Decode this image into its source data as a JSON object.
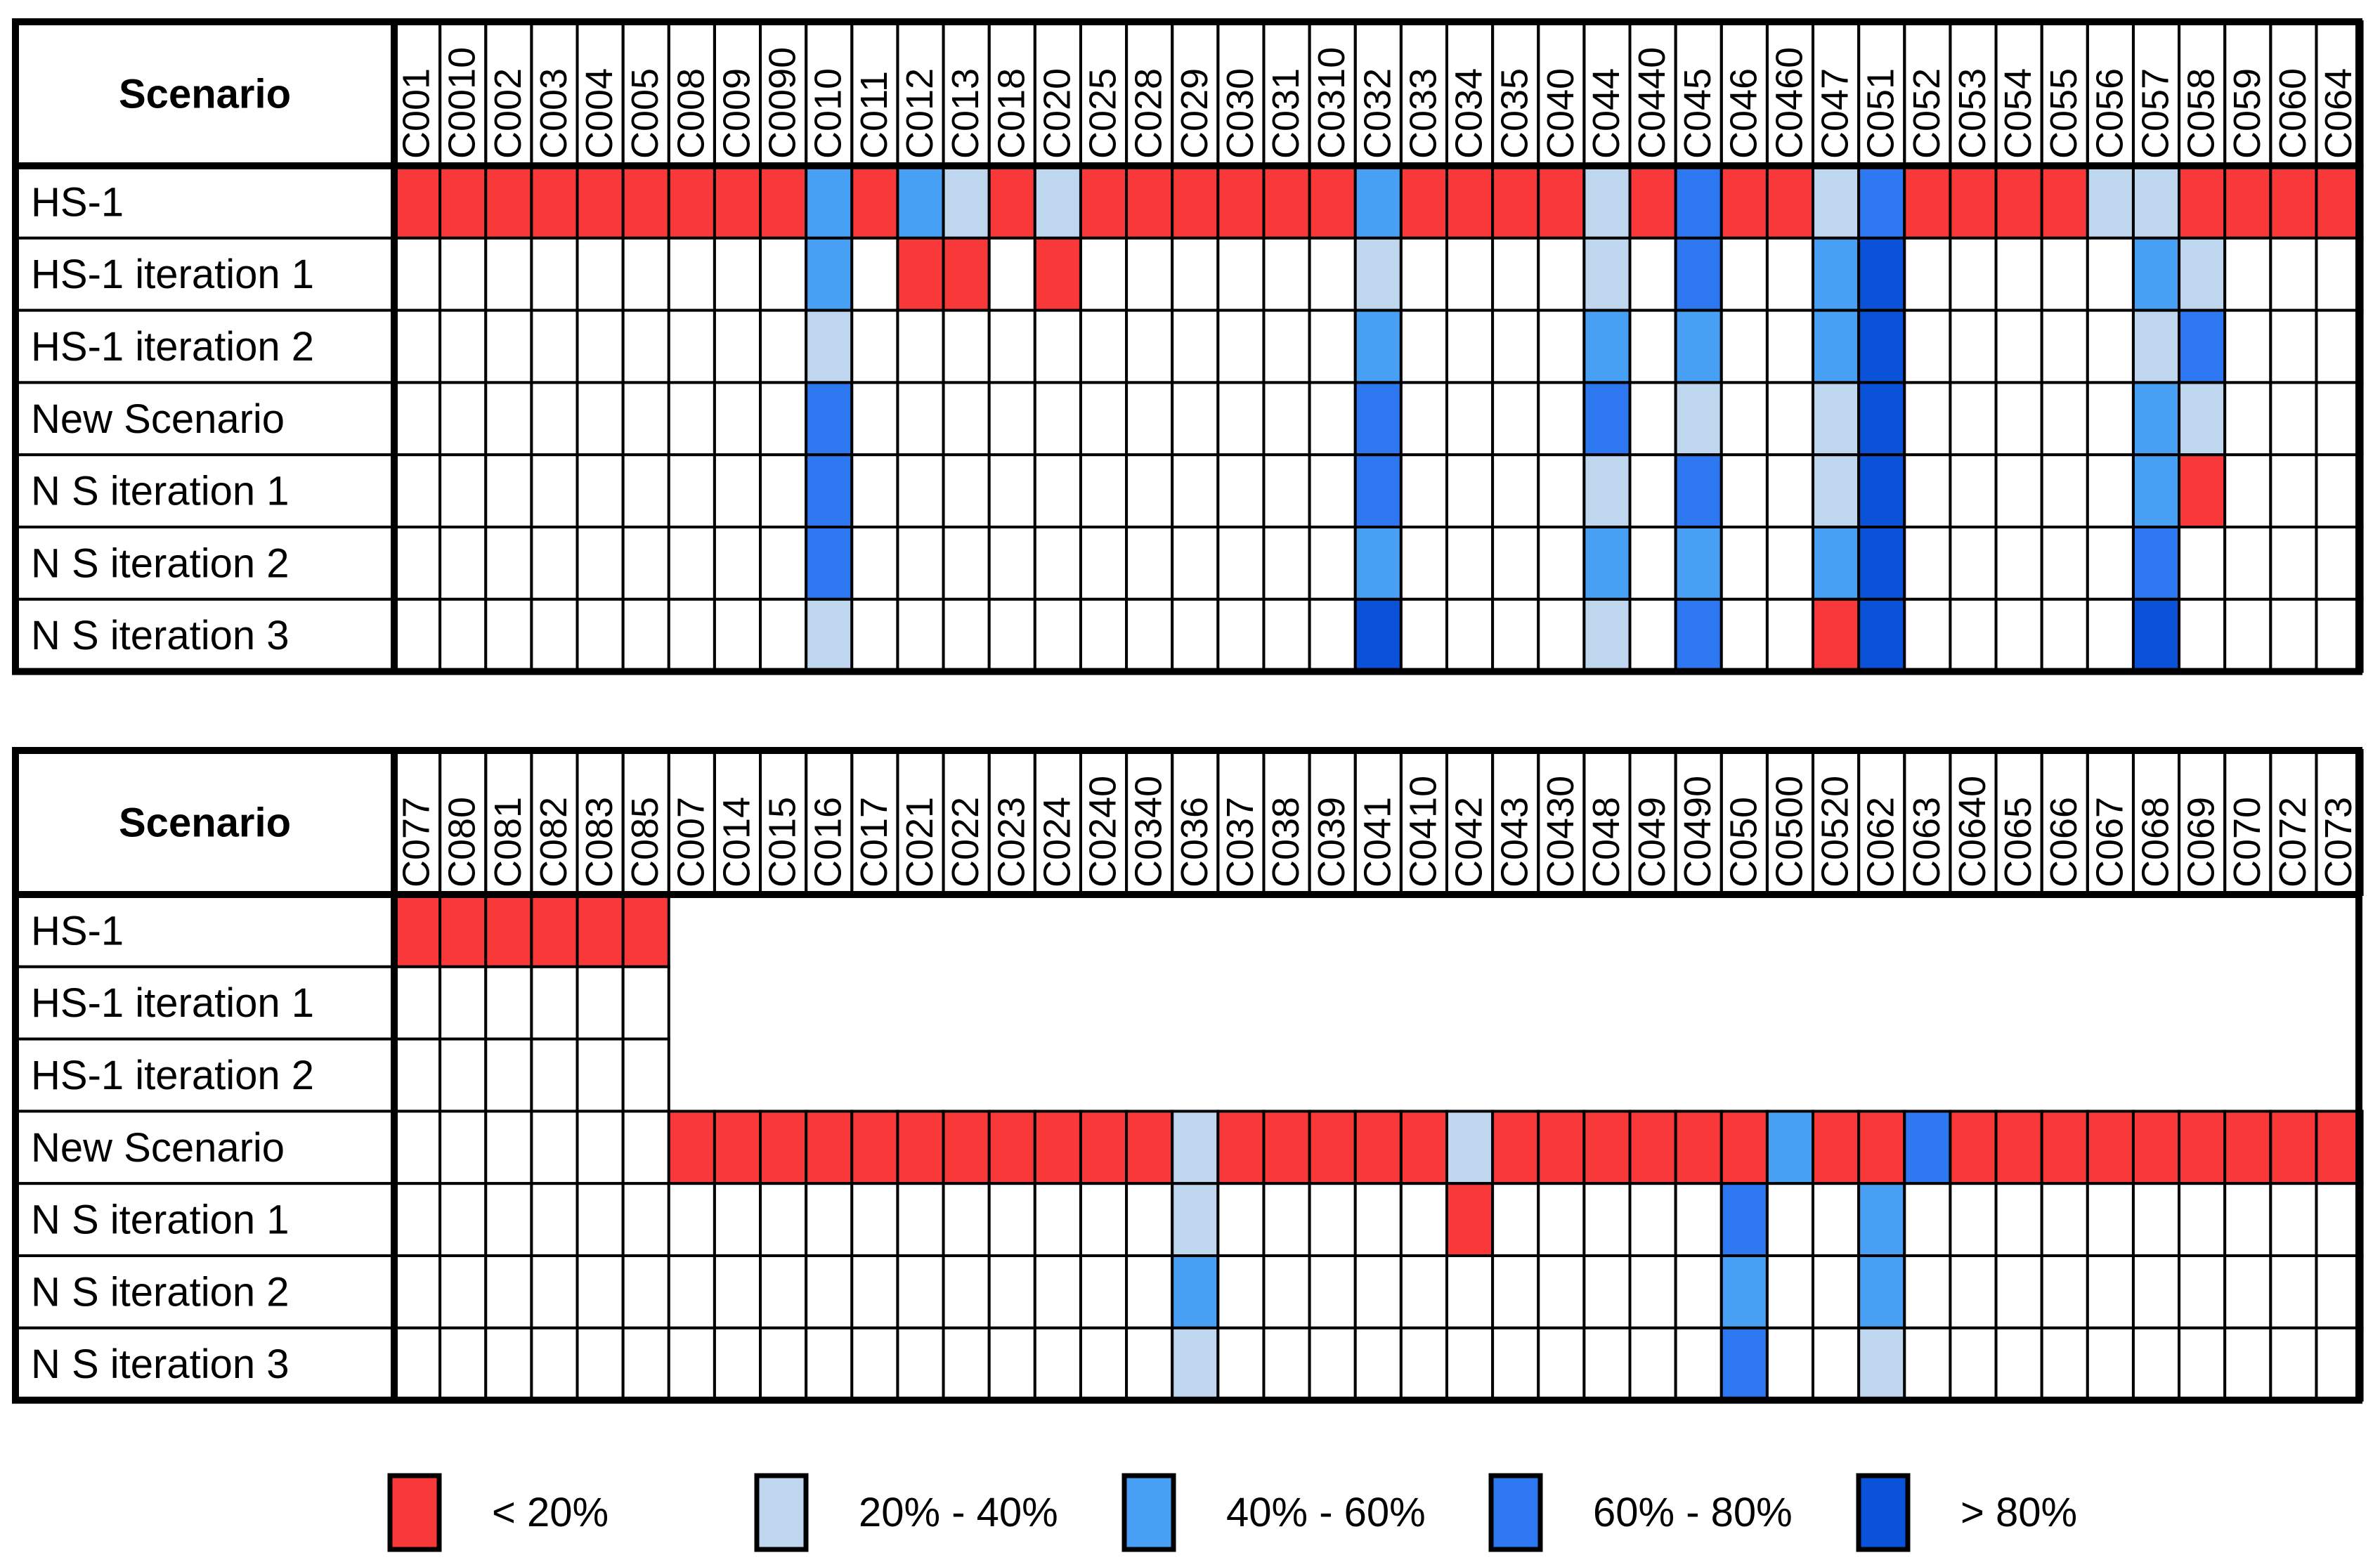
{
  "chart_data": {
    "type": "heatmap",
    "title": "",
    "row_header": "Scenario",
    "rows": [
      "HS-1",
      "HS-1 iteration 1",
      "HS-1 iteration 2",
      "New Scenario",
      "N S iteration 1",
      "N S iteration 2",
      "N S iteration 3"
    ],
    "bins": [
      {
        "key": "A",
        "label": "< 20%",
        "color": "#f93939"
      },
      {
        "key": "B",
        "label": "20% - 40%",
        "color": "#bfd6ef"
      },
      {
        "key": "C",
        "label": "40% - 60%",
        "color": "#48a0f5"
      },
      {
        "key": "D",
        "label": "60% - 80%",
        "color": "#2d78f0"
      },
      {
        "key": "E",
        "label": "> 80%",
        "color": "#0a52d8"
      }
    ],
    "panels": [
      {
        "columns": [
          "C001",
          "C0010",
          "C002",
          "C003",
          "C004",
          "C005",
          "C008",
          "C009",
          "C0090",
          "C010",
          "C011",
          "C012",
          "C013",
          "C018",
          "C020",
          "C025",
          "C028",
          "C029",
          "C030",
          "C031",
          "C0310",
          "C032",
          "C033",
          "C034",
          "C035",
          "C040",
          "C044",
          "C0440",
          "C045",
          "C046",
          "C0460",
          "C047",
          "C051",
          "C052",
          "C053",
          "C054",
          "C055",
          "C056",
          "C057",
          "C058",
          "C059",
          "C060",
          "C064"
        ],
        "cells": [
          "AAAAAAAAACACBABAAAAAACAAAABADAABDAAAABBAAAA",
          ".........C.AA.A......B....B.D..CE.....CB...",
          ".........B...........C....C.C..CE.....BD...",
          ".........D...........D....D.B..BE.....CB...",
          ".........D...........D....B.D..BE.....CA...",
          ".........D...........C....C.C..CE.....D....",
          ".........B...........E....B.D..AE.....E...."
        ]
      },
      {
        "columns": [
          "C077",
          "C080",
          "C081",
          "C082",
          "C083",
          "C085",
          "C007",
          "C014",
          "C015",
          "C016",
          "C017",
          "C021",
          "C022",
          "C023",
          "C024",
          "C0240",
          "C0340",
          "C036",
          "C037",
          "C038",
          "C039",
          "C041",
          "C0410",
          "C042",
          "C043",
          "C0430",
          "C048",
          "C049",
          "C0490",
          "C050",
          "C0500",
          "C0520",
          "C062",
          "C063",
          "C0640",
          "C065",
          "C066",
          "C067",
          "C068",
          "C069",
          "C070",
          "C072",
          "C073"
        ],
        "cells": [
          "AAAAAA-------------------------------------",
          "......-------------------------------------",
          "......-------------------------------------",
          "......AAAAAAAAAAABAAAAABAAAAAACAADAAAAAAAAA",
          ".................B.....A.....D..C..........",
          ".................C...........C..C..........",
          ".................B...........D..B.........."
        ]
      }
    ]
  }
}
